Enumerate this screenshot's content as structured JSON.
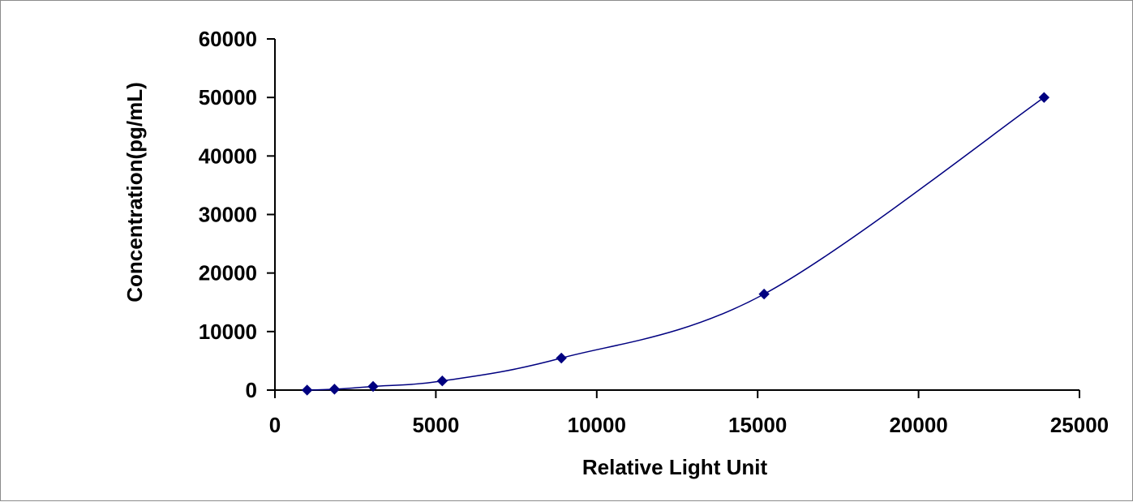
{
  "chart_data": {
    "type": "scatter",
    "title": "",
    "xlabel": "Relative Light Unit",
    "ylabel": "Concentration(pg/mL)",
    "xlim": [
      0,
      25000
    ],
    "ylim": [
      0,
      60000
    ],
    "x_ticks": [
      0,
      5000,
      10000,
      15000,
      20000,
      25000
    ],
    "y_ticks": [
      0,
      10000,
      20000,
      30000,
      40000,
      50000,
      60000
    ],
    "grid": false,
    "legend": "none",
    "series": [
      {
        "x": [
          1000,
          1850,
          3050,
          5200,
          8900,
          15200,
          23900
        ],
        "y": [
          0,
          156,
          625,
          1563,
          5469,
          16406,
          50000
        ],
        "marker": "diamond",
        "line": "smooth",
        "color": "#000080"
      }
    ]
  }
}
